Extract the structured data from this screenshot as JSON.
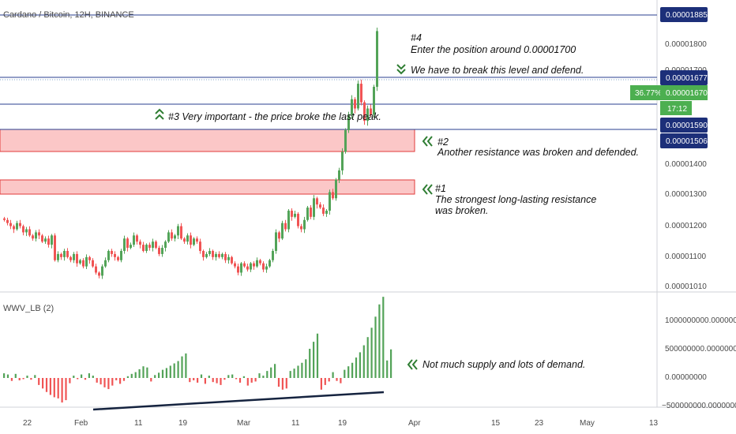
{
  "header": {
    "symbol_title": "Cardano / Bitcoin, 12H, BINANCE"
  },
  "indicator": {
    "title": "WWV_LB (2)"
  },
  "colors": {
    "bull": "#53a358",
    "bear": "#f05454",
    "level_line": "#2a3f8f",
    "zone_fill": "#fbc7c7",
    "zone_border": "#e23b3b",
    "arrow": "#2e7d32",
    "badge_navy": "#1c2f79",
    "badge_green": "#4caf50",
    "trendline": "#15233f"
  },
  "price_axis": {
    "ticks": [
      "0.00001800",
      "0.00001700",
      "0.00001400",
      "0.00001300",
      "0.00001200",
      "0.00001100",
      "0.00001010"
    ],
    "badges": [
      {
        "label": "0.00001885",
        "kind": "navy"
      },
      {
        "label": "0.00001677",
        "kind": "navy"
      },
      {
        "label": "0.00001670",
        "kind": "green"
      },
      {
        "label": "17:12",
        "kind": "green"
      },
      {
        "label": "0.00001590",
        "kind": "navy"
      },
      {
        "label": "0.00001506",
        "kind": "navy"
      }
    ],
    "change_badge": "36.77%"
  },
  "volume_axis": {
    "ticks": [
      "1000000000.00000000",
      "500000000.00000000",
      "0.00000000",
      "−500000000.00000000"
    ]
  },
  "time_axis": {
    "labels": [
      "22",
      "Feb",
      "11",
      "19",
      "Mar",
      "11",
      "19",
      "Apr",
      "15",
      "23",
      "May",
      "13"
    ]
  },
  "annotations": {
    "a4_title": "#4",
    "a4_body": "Enter the position around 0.00001700",
    "break_level": "We have to break this level and defend.",
    "a3": "#3 Very important - the price broke the last peak.",
    "a2_title": "#2",
    "a2_body": "Another resistance was broken and defended.",
    "a1_title": "#1",
    "a1_body1": "The strongest long-lasting resistance",
    "a1_body2": "was broken.",
    "volume_note": "Not much supply and lots of demand."
  },
  "chart_data": [
    {
      "type": "candlestick",
      "title": "Cardano / Bitcoin, 12H, BINANCE",
      "x_labels": [
        "22",
        "Feb",
        "11",
        "19",
        "Mar",
        "11",
        "19",
        "Apr",
        "15",
        "23",
        "May",
        "13"
      ],
      "ylim": [
        9.95e-06,
        1.93e-05
      ],
      "closes": [
        1.24e-05,
        1.23e-05,
        1.22e-05,
        1.21e-05,
        1.23e-05,
        1.22e-05,
        1.2e-05,
        1.21e-05,
        1.19e-05,
        1.18e-05,
        1.2e-05,
        1.19e-05,
        1.17e-05,
        1.18e-05,
        1.16e-05,
        1.19e-05,
        1.11e-05,
        1.13e-05,
        1.12e-05,
        1.14e-05,
        1.12e-05,
        1.11e-05,
        1.13e-05,
        1.1e-05,
        1.11e-05,
        1.09e-05,
        1.12e-05,
        1.11e-05,
        1.09e-05,
        1.07e-05,
        1.06e-05,
        1.09e-05,
        1.11e-05,
        1.14e-05,
        1.13e-05,
        1.12e-05,
        1.11e-05,
        1.14e-05,
        1.18e-05,
        1.15e-05,
        1.16e-05,
        1.19e-05,
        1.17e-05,
        1.16e-05,
        1.14e-05,
        1.16e-05,
        1.15e-05,
        1.17e-05,
        1.15e-05,
        1.13e-05,
        1.15e-05,
        1.17e-05,
        1.2e-05,
        1.18e-05,
        1.19e-05,
        1.22e-05,
        1.18e-05,
        1.17e-05,
        1.19e-05,
        1.16e-05,
        1.18e-05,
        1.17e-05,
        1.14e-05,
        1.12e-05,
        1.13e-05,
        1.14e-05,
        1.12e-05,
        1.13e-05,
        1.12e-05,
        1.13e-05,
        1.11e-05,
        1.12e-05,
        1.1e-05,
        1.09e-05,
        1.07e-05,
        1.1e-05,
        1.09e-05,
        1.08e-05,
        1.1e-05,
        1.09e-05,
        1.11e-05,
        1.1e-05,
        1.08e-05,
        1.09e-05,
        1.11e-05,
        1.14e-05,
        1.2e-05,
        1.18e-05,
        1.23e-05,
        1.21e-05,
        1.27e-05,
        1.25e-05,
        1.26e-05,
        1.22e-05,
        1.21e-05,
        1.24e-05,
        1.28e-05,
        1.25e-05,
        1.31e-05,
        1.29e-05,
        1.28e-05,
        1.26e-05,
        1.27e-05,
        1.33e-05,
        1.31e-05,
        1.37e-05,
        1.4e-05,
        1.46e-05,
        1.53e-05,
        1.58e-05,
        1.63e-05,
        1.6e-05,
        1.68e-05,
        1.62e-05,
        1.56e-05,
        1.6e-05,
        1.58e-05,
        1.67e-05,
        1.85e-05
      ]
    },
    {
      "type": "bar",
      "title": "WWV_LB (2)",
      "ylim": [
        -560000000,
        1420000000
      ],
      "values": [
        80000000,
        60000000,
        -50000000,
        70000000,
        -40000000,
        -20000000,
        40000000,
        -30000000,
        50000000,
        -120000000,
        -180000000,
        -240000000,
        -290000000,
        -330000000,
        -350000000,
        -420000000,
        -380000000,
        -90000000,
        40000000,
        -20000000,
        60000000,
        -30000000,
        80000000,
        40000000,
        -80000000,
        -110000000,
        -160000000,
        -190000000,
        -130000000,
        -40000000,
        -100000000,
        -50000000,
        30000000,
        70000000,
        100000000,
        150000000,
        200000000,
        180000000,
        -60000000,
        50000000,
        90000000,
        140000000,
        170000000,
        210000000,
        250000000,
        290000000,
        370000000,
        420000000,
        -70000000,
        -40000000,
        -80000000,
        60000000,
        -100000000,
        40000000,
        -70000000,
        -90000000,
        -120000000,
        -30000000,
        50000000,
        60000000,
        -20000000,
        -80000000,
        30000000,
        -130000000,
        -80000000,
        -60000000,
        80000000,
        40000000,
        120000000,
        180000000,
        240000000,
        -150000000,
        -200000000,
        -180000000,
        120000000,
        160000000,
        210000000,
        260000000,
        320000000,
        500000000,
        620000000,
        760000000,
        -200000000,
        -120000000,
        -60000000,
        100000000,
        -50000000,
        -90000000,
        140000000,
        200000000,
        260000000,
        350000000,
        440000000,
        560000000,
        700000000,
        860000000,
        1050000000,
        1260000000,
        1390000000,
        300000000,
        490000000
      ]
    }
  ]
}
